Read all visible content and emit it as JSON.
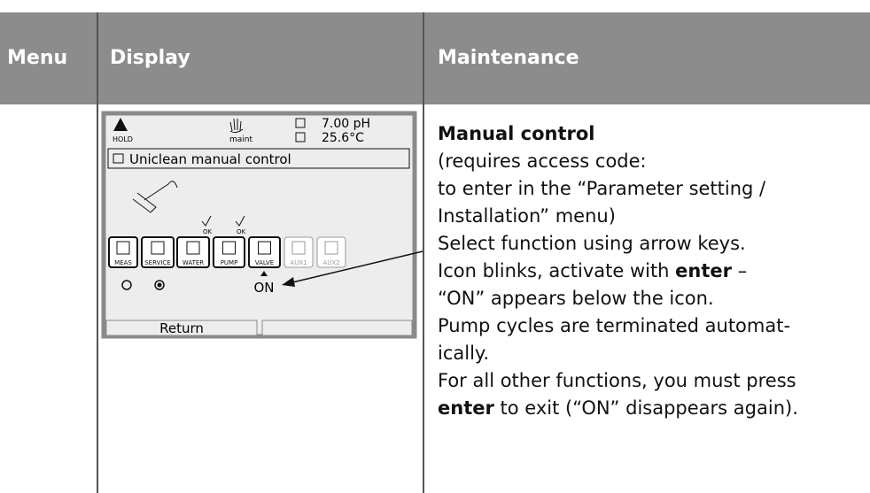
{
  "table": {
    "header": [
      "Menu",
      "Display",
      "Maintenance"
    ]
  },
  "display": {
    "hold": "HOLD",
    "maint": "maint",
    "value1": "7.00 pH",
    "value2": "25.6°C",
    "title": "Uniclean manual control",
    "checks": [
      "OK",
      "OK"
    ],
    "icons": [
      "MEAS",
      "SERVICE",
      "WATER",
      "PUMP",
      "VALVE",
      "AUX1",
      "AUX2"
    ],
    "status": "ON",
    "softkey": "Return"
  },
  "maintenance": {
    "heading": "Manual control",
    "lines": [
      [
        "(requires access code:"
      ],
      [
        "to enter in the “Parameter setting /"
      ],
      [
        "Installation” menu)"
      ],
      [
        "Select function using arrow keys."
      ],
      [
        "Icon blinks, activate with ",
        "enter",
        " –"
      ],
      [
        "“ON” appears below the icon."
      ],
      [
        "Pump cycles are terminated automat-"
      ],
      [
        "ically."
      ],
      [
        "For all other functions, you must press"
      ],
      [
        "enter",
        " to exit (“ON” disappears again)."
      ]
    ]
  }
}
